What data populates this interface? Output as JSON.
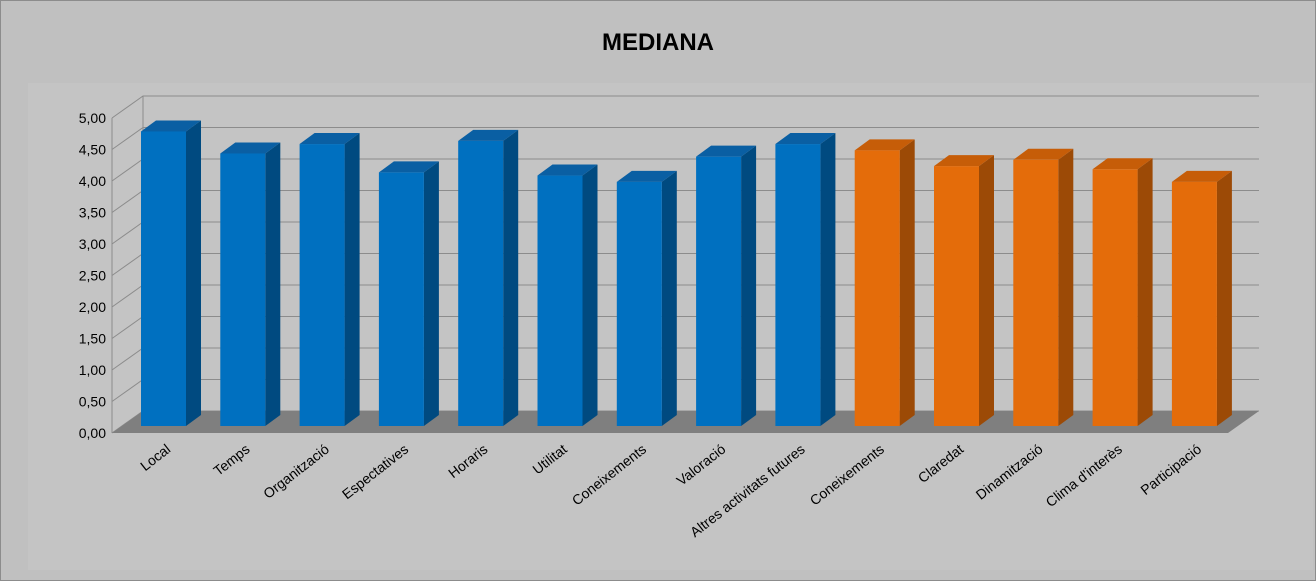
{
  "chart_data": {
    "type": "bar",
    "title": "MEDIANA",
    "xlabel": "",
    "ylabel": "",
    "ylim": [
      0,
      5
    ],
    "y_ticks": [
      "0,00",
      "0,50",
      "1,00",
      "1,50",
      "2,00",
      "2,50",
      "3,00",
      "3,50",
      "4,00",
      "4,50",
      "5,00"
    ],
    "grid": true,
    "style": "3d-column",
    "categories": [
      "Local",
      "Temps",
      "Organització",
      "Espectatives",
      "Horaris",
      "Utilitat",
      "Coneixements",
      "Valoració",
      "Altres activitats futures",
      "Coneixements",
      "Claredat",
      "Dinamització",
      "Clima d'interès",
      "Participació"
    ],
    "values": [
      4.85,
      4.5,
      4.65,
      4.2,
      4.7,
      4.15,
      4.05,
      4.45,
      4.65,
      4.55,
      4.3,
      4.4,
      4.25,
      4.05
    ],
    "bar_groups": [
      "blue",
      "blue",
      "blue",
      "blue",
      "blue",
      "blue",
      "blue",
      "blue",
      "blue",
      "orange",
      "orange",
      "orange",
      "orange",
      "orange"
    ],
    "colors": {
      "blue": {
        "front": "#0070c0",
        "side": "#004a80",
        "top": "#0a5fa3"
      },
      "orange": {
        "front": "#e46c0a",
        "side": "#9c4a06",
        "top": "#c65d08"
      },
      "plot_bg": "#c0c0c0",
      "floor": "#7f7f7f",
      "gridline": "#8c8c8c"
    }
  }
}
